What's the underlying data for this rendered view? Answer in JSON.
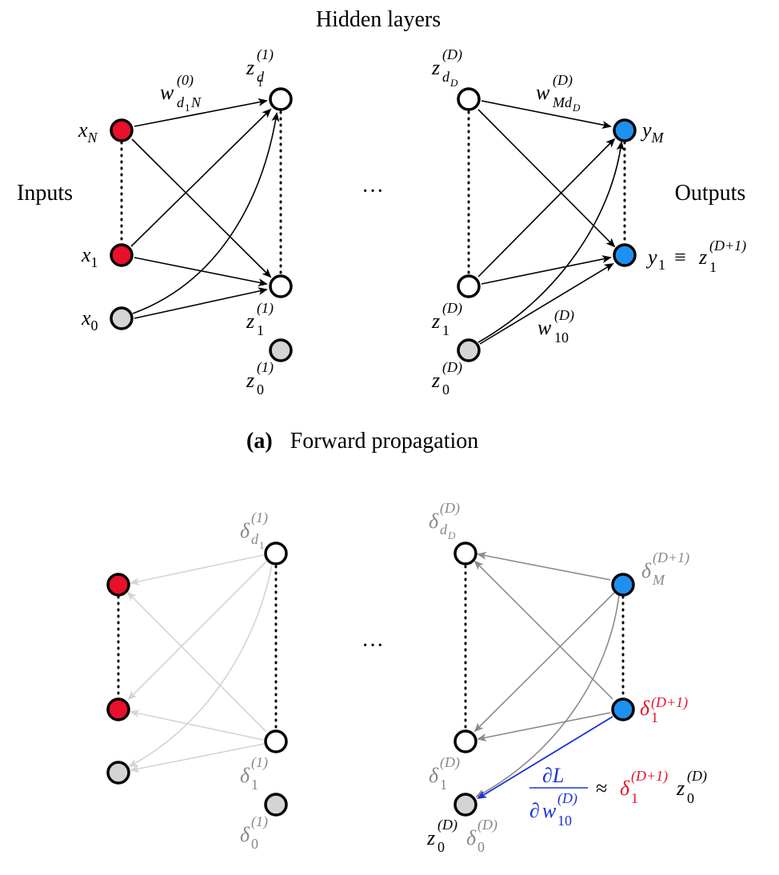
{
  "labels": {
    "hidden_layers": "Hidden layers",
    "inputs": "Inputs",
    "outputs": "Outputs",
    "ellipsis": "···",
    "caption_a_tag": "(a)",
    "caption_a_text": "Forward propagation"
  },
  "symbols": {
    "x": "x",
    "z": "z",
    "y": "y",
    "w": "w",
    "delta": "δ",
    "sub_N": "N",
    "sub_1": "1",
    "sub_0": "0",
    "sub_M": "M",
    "sub_d1": "d",
    "sub_d1_inner": "1",
    "sub_dD": "d",
    "sub_dD_inner": "D",
    "sub_d1N": "d",
    "sub_d1N_inner": "1",
    "sub_d1N_tail": "N",
    "sub_MdD": "Md",
    "sub_MdD_inner": "D",
    "sub_10": "10",
    "sup_1": "(1)",
    "sup_D": "(D)",
    "sup_0": "(0)",
    "sup_D1": "(D+1)",
    "equiv": "≡",
    "approx": "≈",
    "partial_L": "∂L",
    "partial": "∂"
  },
  "colors": {
    "input_node": "#e8102a",
    "output_node": "#1e90f0",
    "bias_node": "#d4d4d4",
    "hidden_node": "#ffffff",
    "highlight_red": "#e8102a",
    "highlight_blue": "#1a33d6",
    "grey_text": "#888888"
  }
}
